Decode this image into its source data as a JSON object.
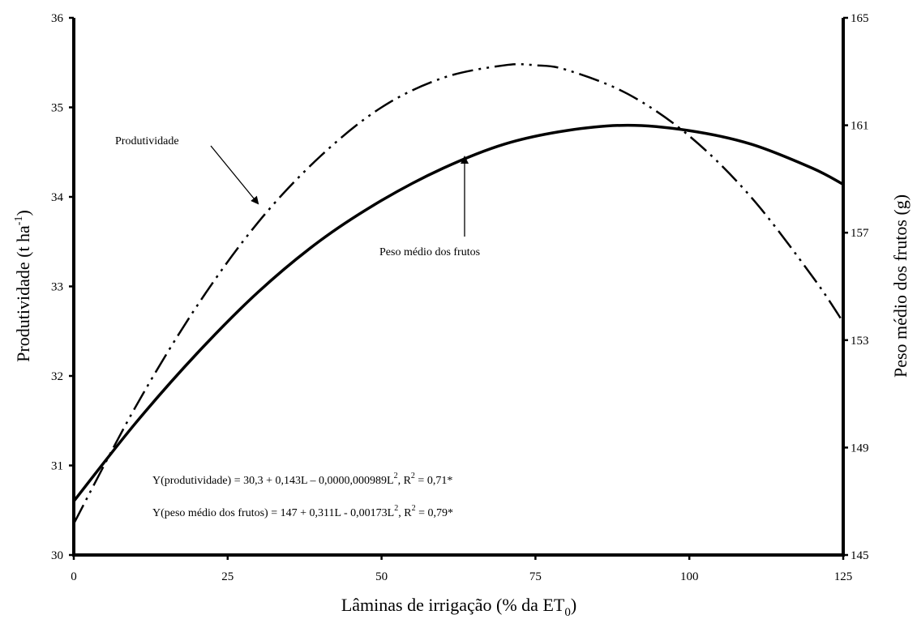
{
  "chart_data": {
    "type": "line",
    "xlabel": "Lâminas de irrigação (%  da ET",
    "xlabel_sub": "0",
    "xlabel_end": ")",
    "ylabel": "Produtividade (t ha",
    "ylabel_sup": "-1",
    "ylabel_end": ")",
    "y2label": "Peso médio dos frutos (g)",
    "xlim": [
      0,
      125
    ],
    "ylim": [
      30,
      36
    ],
    "y2lim": [
      145,
      165
    ],
    "x_ticks": [
      0,
      25,
      50,
      75,
      100,
      125
    ],
    "y_ticks": [
      30,
      31,
      32,
      33,
      34,
      35,
      36
    ],
    "y2_ticks": [
      145,
      149,
      153,
      157,
      161,
      165
    ],
    "grid": false,
    "series": [
      {
        "key": "produtividade",
        "axis": "left",
        "style": "dash-dot-dot",
        "x": [
          0,
          10,
          20,
          30,
          40,
          50,
          60,
          70,
          75,
          80,
          90,
          100,
          110,
          120,
          125
        ],
        "y": [
          30.35,
          31.65,
          32.78,
          33.72,
          34.45,
          35.0,
          35.33,
          35.47,
          35.47,
          35.42,
          35.15,
          34.68,
          34.0,
          33.11,
          32.6
        ]
      },
      {
        "key": "peso",
        "axis": "right",
        "style": "solid",
        "x": [
          0,
          10,
          20,
          30,
          40,
          50,
          60,
          70,
          80,
          90,
          100,
          110,
          120,
          125
        ],
        "y": [
          147.0,
          149.9,
          152.5,
          154.8,
          156.7,
          158.2,
          159.4,
          160.3,
          160.8,
          161.0,
          160.8,
          160.3,
          159.4,
          158.8
        ]
      }
    ],
    "annotations": {
      "produtividade_label": "Produtividade",
      "peso_label": "Peso médio dos frutos",
      "eq1_main": "Y(produtividade) = 30,3 + 0,143L – 0,0000,000989L",
      "eq1_sup": "2",
      "eq1_r": ", R",
      "eq1_r_sup": "2",
      "eq1_end": " = 0,71*",
      "eq2_main": "Y(peso médio dos frutos) = 147 + 0,311L - 0,00173L",
      "eq2_sup": "2",
      "eq2_r": ", R",
      "eq2_r_sup": "2",
      "eq2_end": " = 0,79*"
    }
  }
}
